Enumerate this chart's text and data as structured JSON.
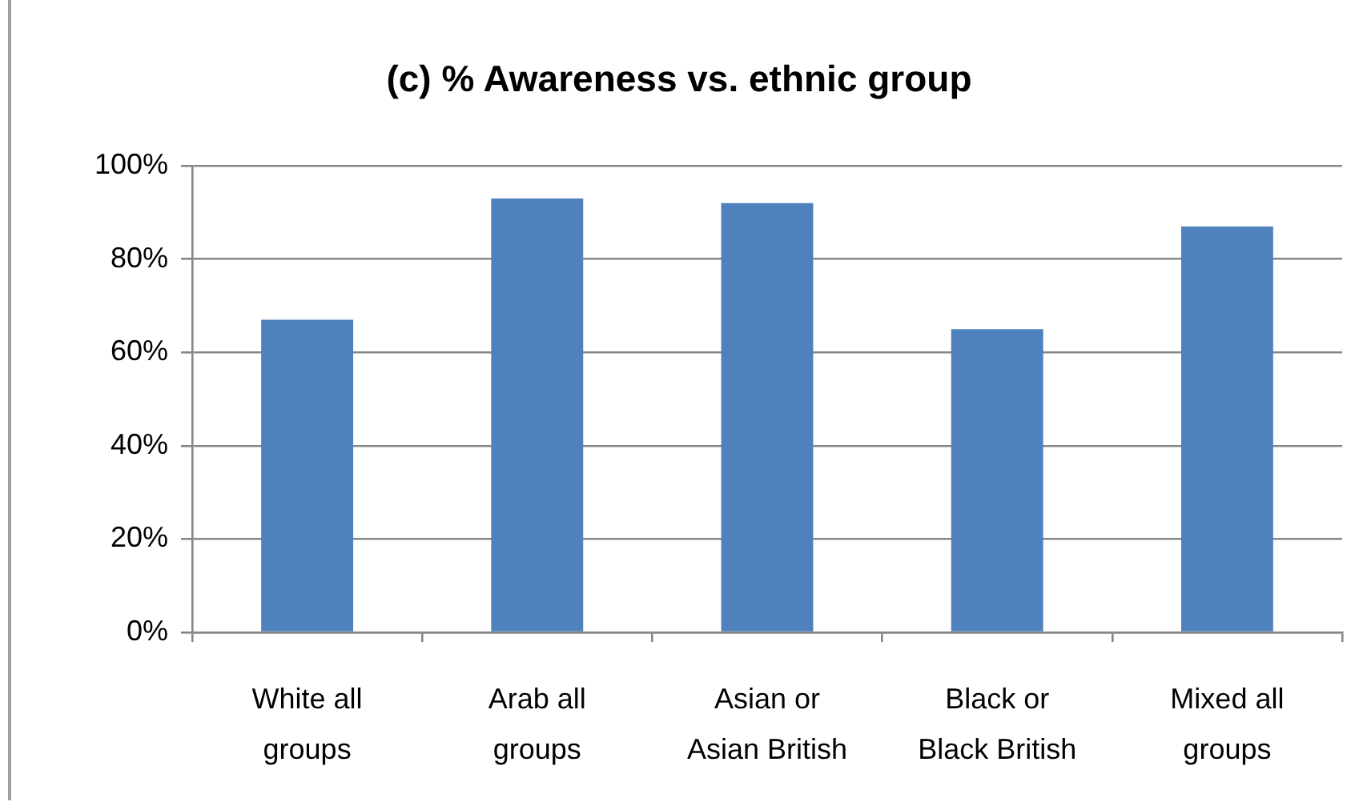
{
  "chart_data": {
    "type": "bar",
    "title": "(c) % Awareness vs. ethnic group",
    "categories": [
      "White all groups",
      "Arab all groups",
      "Asian or Asian British",
      "Black or Black British",
      "Mixed all groups"
    ],
    "values": [
      67,
      93,
      92,
      65,
      87
    ],
    "color": "#4f81bd",
    "ylim": [
      0,
      100
    ],
    "yticks": [
      {
        "value": 0,
        "label": "0%"
      },
      {
        "value": 20,
        "label": "20%"
      },
      {
        "value": 40,
        "label": "40%"
      },
      {
        "value": 60,
        "label": "60%"
      },
      {
        "value": 80,
        "label": "80%"
      },
      {
        "value": 100,
        "label": "100%"
      }
    ],
    "grid": "y",
    "legend": false
  }
}
